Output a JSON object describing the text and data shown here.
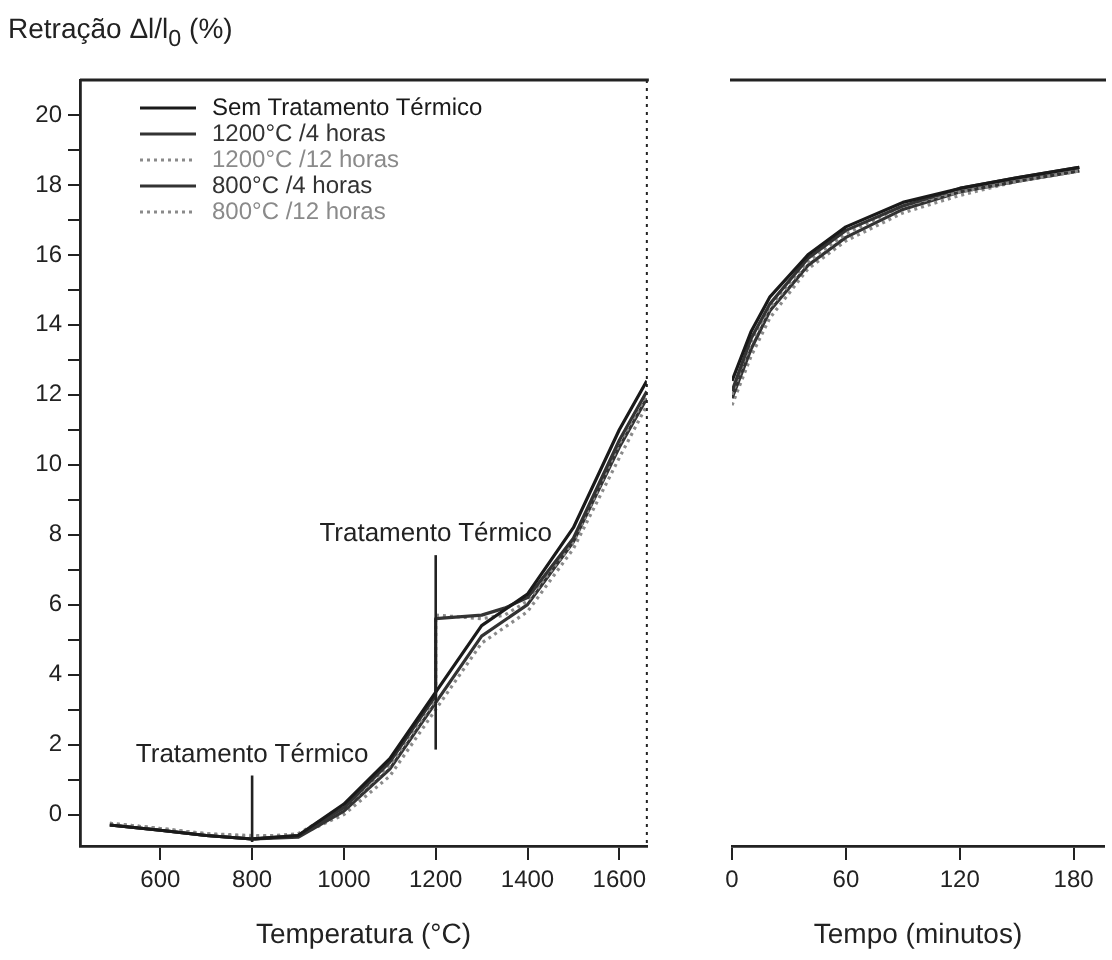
{
  "chart_data": [
    {
      "type": "line",
      "ylabel": "Retração Δl/l$_{0}$ (%)",
      "xlabel": "Temperatura (°C)",
      "xlim": [
        425,
        1660
      ],
      "xticks": [
        600,
        800,
        1000,
        1200,
        1400,
        1600
      ],
      "ylim": [
        -0.9,
        21
      ],
      "yticks": [
        0,
        {
          "value": 1,
          "label": null
        },
        2,
        {
          "value": 3,
          "label": null
        },
        4,
        {
          "value": 5,
          "label": null
        },
        6,
        {
          "value": 7,
          "label": null
        },
        8,
        {
          "value": 9,
          "label": null
        },
        10,
        {
          "value": 11,
          "label": null
        },
        12,
        {
          "value": 13,
          "label": null
        },
        14,
        {
          "value": 15,
          "label": null
        },
        16,
        {
          "value": 17,
          "label": null
        },
        18,
        {
          "value": 19,
          "label": null
        },
        20
      ],
      "legend": "top left",
      "annotations": [
        {
          "text": "Tratamento Térmico",
          "x": 800,
          "y": -0.7
        },
        {
          "text": "Tratamento Térmico",
          "x": 1200,
          "y": 5.7
        }
      ],
      "series": [
        {
          "name": "Sem Tratamento Térmico",
          "color": "#1a1a1a",
          "line_style": "solid",
          "x": [
            490,
            600,
            700,
            800,
            900,
            1000,
            1100,
            1200,
            1300,
            1400,
            1500,
            1600,
            1660
          ],
          "values": [
            -0.3,
            -0.45,
            -0.6,
            -0.7,
            -0.6,
            0.3,
            1.6,
            3.5,
            5.4,
            6.3,
            8.2,
            11.0,
            12.4
          ]
        },
        {
          "name": "1200°C /4 horas",
          "color": "#333333",
          "line_style": "solid",
          "x": [
            490,
            600,
            700,
            800,
            900,
            1000,
            1100,
            1200,
            1200,
            1300,
            1350,
            1400,
            1500,
            1600,
            1660
          ],
          "values": [
            -0.3,
            -0.45,
            -0.6,
            -0.7,
            -0.6,
            0.2,
            1.5,
            3.4,
            5.6,
            5.7,
            5.9,
            6.2,
            7.9,
            10.7,
            12.1
          ]
        },
        {
          "name": "1200°C /12 horas",
          "color": "#8a8a8a",
          "line_style": "dotted",
          "x": [
            490,
            600,
            700,
            800,
            900,
            1000,
            1100,
            1200,
            1200,
            1300,
            1350,
            1400,
            1500,
            1600,
            1660
          ],
          "values": [
            -0.25,
            -0.4,
            -0.55,
            -0.65,
            -0.55,
            0.2,
            1.4,
            3.3,
            5.7,
            5.6,
            5.7,
            6.1,
            7.8,
            10.6,
            12.0
          ]
        },
        {
          "name": "800°C /4 horas",
          "color": "#333333",
          "line_style": "solid",
          "x": [
            490,
            600,
            700,
            800,
            900,
            1000,
            1100,
            1200,
            1300,
            1400,
            1500,
            1600,
            1660
          ],
          "values": [
            -0.3,
            -0.45,
            -0.6,
            -0.7,
            -0.65,
            0.1,
            1.3,
            3.2,
            5.1,
            6.0,
            7.8,
            10.5,
            11.9
          ]
        },
        {
          "name": "800°C /12 horas",
          "color": "#8a8a8a",
          "line_style": "dotted",
          "x": [
            490,
            600,
            700,
            800,
            900,
            1000,
            1100,
            1200,
            1300,
            1400,
            1500,
            1600,
            1660
          ],
          "values": [
            -0.25,
            -0.4,
            -0.55,
            -0.6,
            -0.6,
            0.0,
            1.1,
            3.0,
            4.9,
            5.8,
            7.6,
            10.2,
            11.7
          ]
        }
      ]
    },
    {
      "type": "line",
      "xlabel": "Tempo (minutos)",
      "xlim": [
        0,
        196
      ],
      "xticks": [
        0,
        60,
        120,
        180
      ],
      "ylim": [
        -0.9,
        21
      ],
      "tick_labels": "x",
      "series": [
        {
          "color": "#1a1a1a",
          "line_style": "solid",
          "x": [
            0,
            10,
            20,
            40,
            60,
            90,
            120,
            150,
            183
          ],
          "values": [
            12.4,
            13.8,
            14.8,
            16.0,
            16.8,
            17.5,
            17.9,
            18.2,
            18.5
          ]
        },
        {
          "color": "#333333",
          "line_style": "solid",
          "x": [
            0,
            10,
            20,
            40,
            60,
            90,
            120,
            150,
            183
          ],
          "values": [
            12.1,
            13.6,
            14.6,
            15.9,
            16.7,
            17.4,
            17.9,
            18.2,
            18.5
          ]
        },
        {
          "color": "#8a8a8a",
          "line_style": "dotted",
          "x": [
            0,
            10,
            20,
            40,
            60,
            90,
            120,
            150,
            183
          ],
          "values": [
            12.0,
            13.5,
            14.5,
            15.8,
            16.6,
            17.4,
            17.8,
            18.1,
            18.4
          ]
        },
        {
          "color": "#333333",
          "line_style": "solid",
          "x": [
            0,
            10,
            20,
            40,
            60,
            90,
            120,
            150,
            183
          ],
          "values": [
            11.9,
            13.3,
            14.4,
            15.7,
            16.5,
            17.3,
            17.8,
            18.1,
            18.4
          ]
        },
        {
          "color": "#8a8a8a",
          "line_style": "dotted",
          "x": [
            0,
            10,
            20,
            40,
            60,
            90,
            120,
            150,
            183
          ],
          "values": [
            11.7,
            13.1,
            14.2,
            15.6,
            16.4,
            17.2,
            17.7,
            18.1,
            18.4
          ]
        }
      ]
    }
  ]
}
